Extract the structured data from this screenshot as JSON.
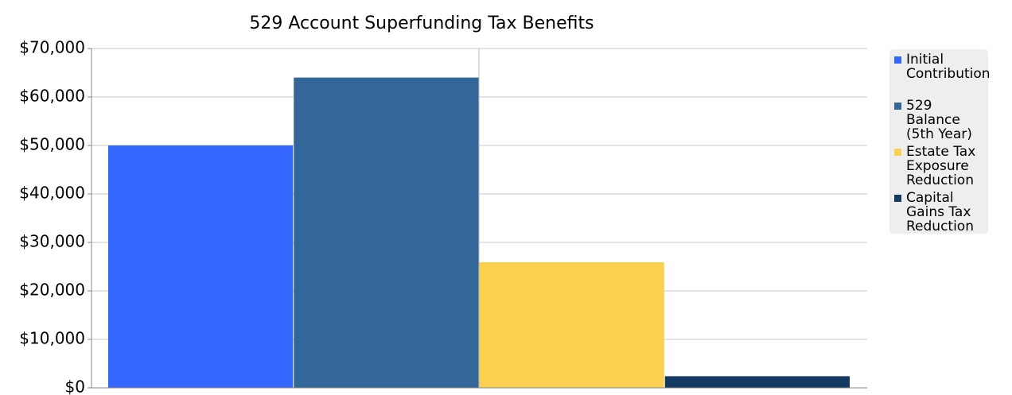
{
  "chart_data": {
    "type": "bar",
    "title": "529 Account Superfunding Tax Benefits",
    "categories": [
      null
    ],
    "series": [
      {
        "name": "Initial Contribution",
        "color": "#3366ff",
        "values": [
          50000
        ]
      },
      {
        "name": "529 Balance (5th Year)",
        "color": "#336699",
        "values": [
          64000
        ]
      },
      {
        "name": "Estate Tax Exposure Reduction",
        "color": "#fcd04f",
        "values": [
          25900
        ]
      },
      {
        "name": "Capital Gains Tax Reduction",
        "color": "#133a62",
        "values": [
          2400
        ]
      }
    ],
    "ylim": [
      0,
      70000
    ],
    "yticks": [
      {
        "value": 0,
        "label": "$0"
      },
      {
        "value": 10000,
        "label": "$10,000"
      },
      {
        "value": 20000,
        "label": "$20,000"
      },
      {
        "value": 30000,
        "label": "$30,000"
      },
      {
        "value": 40000,
        "label": "$40,000"
      },
      {
        "value": 50000,
        "label": "$50,000"
      },
      {
        "value": 60000,
        "label": "$60,000"
      },
      {
        "value": 70000,
        "label": "$70,000"
      }
    ],
    "grid": true,
    "legend": "right"
  }
}
